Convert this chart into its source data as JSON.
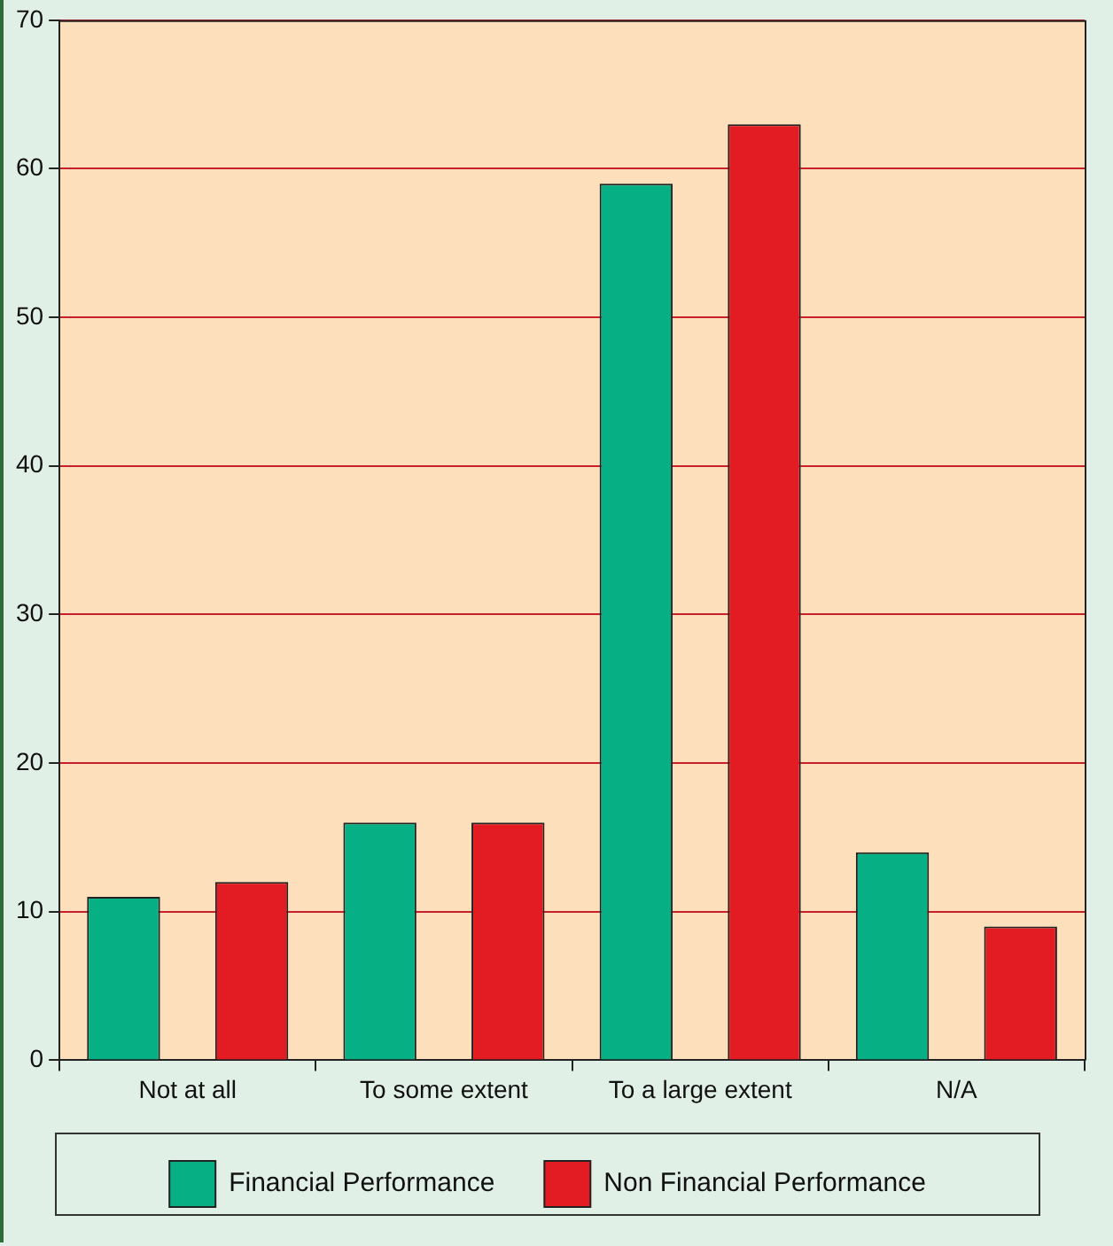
{
  "chart_data": {
    "type": "bar",
    "categories": [
      "Not at all",
      "To some extent",
      "To a large extent",
      "N/A"
    ],
    "series": [
      {
        "name": "Financial Performance",
        "color": "#07b084",
        "values": [
          11,
          16,
          59,
          14
        ]
      },
      {
        "name": "Non Financial Performance",
        "color": "#e31b23",
        "values": [
          12,
          16,
          63,
          9
        ]
      }
    ],
    "ylim": [
      0,
      70
    ],
    "yticks": [
      0,
      10,
      20,
      30,
      40,
      50,
      60,
      70
    ],
    "grid": "y",
    "legend": "bottom"
  }
}
